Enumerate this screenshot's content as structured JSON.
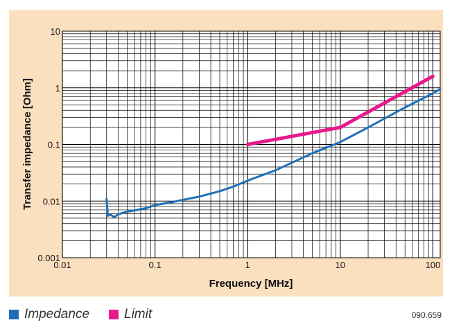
{
  "chart_data": {
    "type": "line",
    "x_scale": "log",
    "y_scale": "log",
    "xlim": [
      0.01,
      120
    ],
    "ylim": [
      0.001,
      10
    ],
    "xlabel": "Frequency [MHz]",
    "ylabel": "Transfer impedance [Ohm]",
    "x_ticks": [
      0.01,
      0.1,
      1,
      10,
      100
    ],
    "x_tick_labels": [
      "0.01",
      "0.1",
      "1",
      "10",
      "100"
    ],
    "y_ticks": [
      0.001,
      0.01,
      0.1,
      1,
      10
    ],
    "y_tick_labels": [
      "0.001",
      "0.01",
      "0.1",
      "1",
      "10"
    ],
    "grid": true,
    "legend_position": "bottom-left",
    "series": [
      {
        "name": "Impedance",
        "color": "#1f6fb8",
        "x": [
          0.03,
          0.031,
          0.033,
          0.036,
          0.04,
          0.045,
          0.05,
          0.06,
          0.07,
          0.08,
          0.1,
          0.15,
          0.2,
          0.3,
          0.5,
          0.7,
          1,
          2,
          5,
          10,
          20,
          50,
          100,
          120
        ],
        "y": [
          0.011,
          0.0055,
          0.0058,
          0.0052,
          0.0058,
          0.0062,
          0.0065,
          0.0068,
          0.0072,
          0.0075,
          0.0085,
          0.0095,
          0.0105,
          0.012,
          0.015,
          0.018,
          0.023,
          0.035,
          0.07,
          0.11,
          0.2,
          0.45,
          0.8,
          0.95
        ]
      },
      {
        "name": "Limit",
        "color": "#e8198c",
        "x": [
          1,
          10,
          100
        ],
        "y": [
          0.1,
          0.2,
          1.6
        ]
      }
    ]
  },
  "legend": {
    "impedance_label": "Impedance",
    "limit_label": "Limit",
    "impedance_color": "#1f6fb8",
    "limit_color": "#e8198c"
  },
  "figure_code": "090.659"
}
